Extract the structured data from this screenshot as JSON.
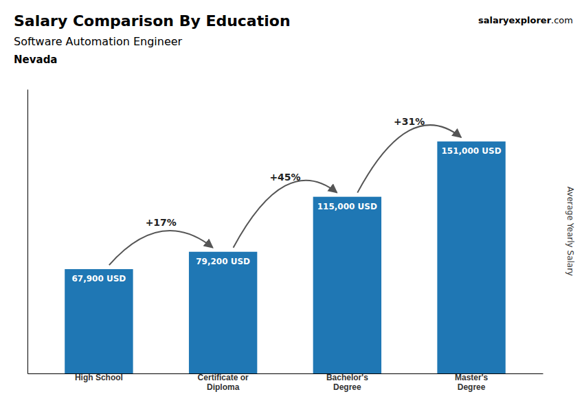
{
  "chart_data": {
    "type": "bar",
    "title": "Salary Comparison By Education",
    "subtitle": "Software Automation Engineer",
    "location": "Nevada",
    "source": [
      "salary",
      "explorer",
      ".com"
    ],
    "ylabel": "Average Yearly Salary",
    "categories": [
      "High School",
      "Certificate or\nDiploma",
      "Bachelor's\nDegree",
      "Master's\nDegree"
    ],
    "values": [
      67900,
      79200,
      115000,
      151000
    ],
    "value_labels": [
      "67,900 USD",
      "79,200 USD",
      "115,000 USD",
      "151,000 USD"
    ],
    "data_labels": true,
    "annotations": [
      "+17%",
      "+45%",
      "+31%"
    ],
    "color": "#1f77b4",
    "ylim": [
      0,
      185000
    ],
    "tick_labels": "x",
    "grid": false
  }
}
